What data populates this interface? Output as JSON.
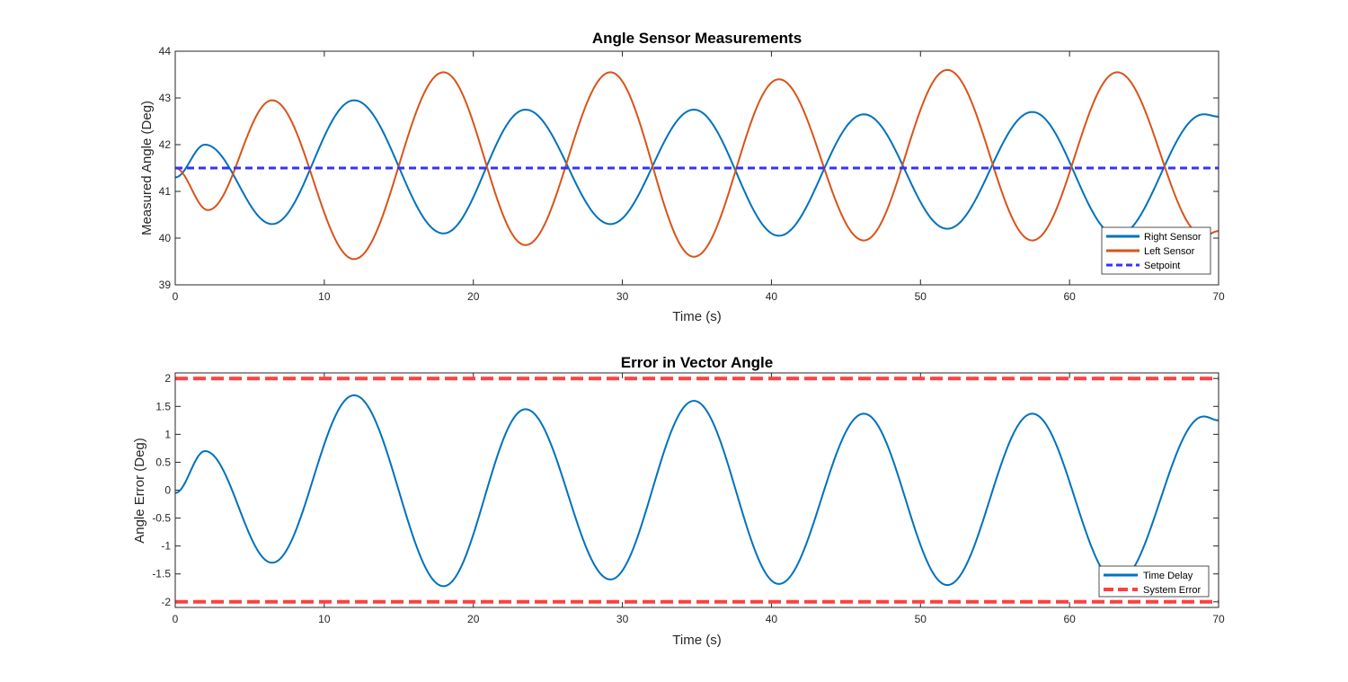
{
  "chart_data": [
    {
      "type": "line",
      "title": "Angle Sensor Measurements",
      "xlabel": "Time (s)",
      "ylabel": "Measured Angle (Deg)",
      "xlim": [
        0,
        70
      ],
      "ylim": [
        39,
        44
      ],
      "xticks": [
        0,
        10,
        20,
        30,
        40,
        50,
        60,
        70
      ],
      "yticks": [
        39,
        40,
        41,
        42,
        43,
        44
      ],
      "grid": false,
      "legend_position": "bottom-right",
      "series": [
        {
          "name": "Right Sensor",
          "color": "#0072BD",
          "style": "solid",
          "x": [
            0,
            2,
            6.5,
            12,
            18,
            23.5,
            29.2,
            34.8,
            40.5,
            46.2,
            51.8,
            57.5,
            63.2,
            69,
            70
          ],
          "y": [
            41.3,
            42.0,
            40.3,
            42.95,
            40.1,
            42.75,
            40.3,
            42.75,
            40.05,
            42.65,
            40.2,
            42.7,
            40.05,
            42.65,
            42.6
          ]
        },
        {
          "name": "Left Sensor",
          "color": "#D95319",
          "style": "solid",
          "x": [
            0,
            2.2,
            6.5,
            12,
            18,
            23.5,
            29.2,
            34.8,
            40.5,
            46.2,
            51.8,
            57.5,
            63.2,
            69,
            70
          ],
          "y": [
            41.5,
            40.6,
            42.95,
            39.55,
            43.55,
            39.85,
            43.55,
            39.6,
            43.4,
            39.95,
            43.6,
            39.95,
            43.55,
            40.05,
            40.15
          ]
        },
        {
          "name": "Setpoint",
          "color": "#3333FF",
          "style": "dashed",
          "x": [
            0,
            70
          ],
          "y": [
            41.5,
            41.5
          ]
        }
      ]
    },
    {
      "type": "line",
      "title": "Error in Vector Angle",
      "xlabel": "Time (s)",
      "ylabel": "Angle Error (Deg)",
      "xlim": [
        0,
        70
      ],
      "ylim": [
        -2.1,
        2.1
      ],
      "xticks": [
        0,
        10,
        20,
        30,
        40,
        50,
        60,
        70
      ],
      "yticks": [
        -2,
        -1.5,
        -1,
        -0.5,
        0,
        0.5,
        1,
        1.5,
        2
      ],
      "ytick_labels": [
        "-2",
        "-1.5",
        "-1",
        "-0.5",
        "0",
        "0.5",
        "1",
        "1.5",
        "2"
      ],
      "grid": false,
      "legend_position": "bottom-right",
      "series": [
        {
          "name": "Time Delay",
          "color": "#0072BD",
          "style": "solid",
          "x": [
            0,
            2,
            6.5,
            12,
            18,
            23.5,
            29.2,
            34.8,
            40.5,
            46.2,
            51.8,
            57.5,
            63.2,
            69,
            70
          ],
          "y": [
            -0.05,
            0.7,
            -1.3,
            1.7,
            -1.72,
            1.45,
            -1.6,
            1.6,
            -1.68,
            1.37,
            -1.7,
            1.37,
            -1.65,
            1.32,
            1.25
          ]
        },
        {
          "name": "System Error",
          "color": "#FF4040",
          "style": "dashed",
          "x": [
            0,
            70
          ],
          "y": [
            2,
            2
          ]
        },
        {
          "name": "",
          "color": "#FF4040",
          "style": "dashed",
          "x": [
            0,
            70
          ],
          "y": [
            -2,
            -2
          ]
        }
      ]
    }
  ]
}
